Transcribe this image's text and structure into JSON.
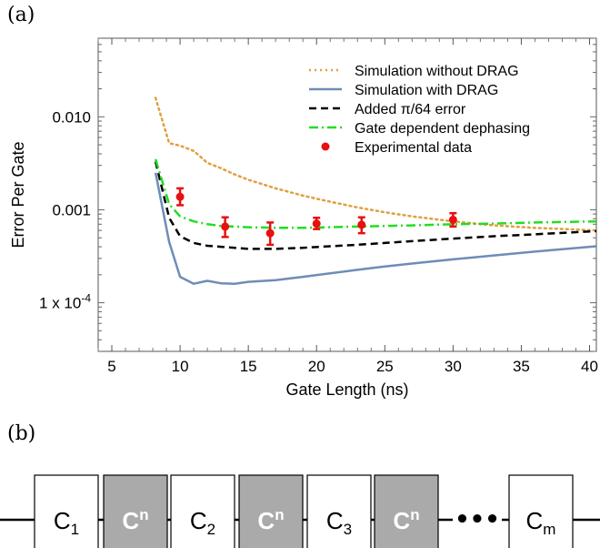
{
  "panel_labels": {
    "a": "(a)",
    "b": "(b)"
  },
  "chart_data": {
    "type": "line",
    "title": "",
    "xlabel": "Gate Length (ns)",
    "ylabel": "Error Per Gate",
    "xlim": [
      4,
      40.5
    ],
    "ylim": [
      3e-05,
      0.07
    ],
    "yscale": "log",
    "grid": false,
    "legend_position": "top-right",
    "x_ticks": [
      5,
      10,
      15,
      20,
      25,
      30,
      35,
      40
    ],
    "y_ticks": [
      {
        "value": 0.0001,
        "label": "1 x 10",
        "sup": "-4"
      },
      {
        "value": 0.001,
        "label": "0.001",
        "sup": ""
      },
      {
        "value": 0.01,
        "label": "0.010",
        "sup": ""
      }
    ],
    "series": [
      {
        "name": "Simulation without DRAG",
        "style": "dotted",
        "color": "#e0a040",
        "x": [
          8.2,
          9.2,
          10,
          11,
          12,
          13,
          14,
          15,
          17,
          19,
          21,
          23,
          25,
          27,
          30,
          33,
          36,
          40.5
        ],
        "y": [
          0.016,
          0.0052,
          0.0049,
          0.0043,
          0.0032,
          0.0028,
          0.0024,
          0.0021,
          0.0017,
          0.00142,
          0.00122,
          0.00106,
          0.00094,
          0.00085,
          0.00075,
          0.00068,
          0.00064,
          0.0006
        ]
      },
      {
        "name": "Simulation with DRAG",
        "style": "solid",
        "color": "#6e8db8",
        "x": [
          8.2,
          9.2,
          10,
          11,
          12,
          13,
          14,
          15,
          17,
          19,
          21,
          23,
          25,
          27,
          30,
          33,
          36,
          40.5
        ],
        "y": [
          0.0025,
          0.00045,
          0.00019,
          0.00016,
          0.000172,
          0.000162,
          0.00016,
          0.000168,
          0.000175,
          0.00019,
          0.000207,
          0.000226,
          0.000245,
          0.000264,
          0.000293,
          0.000323,
          0.000355,
          0.000405
        ]
      },
      {
        "name": "Added π/64 error",
        "style": "dashed",
        "color": "#000000",
        "x": [
          8.2,
          9.2,
          10,
          11,
          12,
          13,
          14,
          15,
          17,
          19,
          21,
          23,
          25,
          27,
          30,
          33,
          36,
          40.5
        ],
        "y": [
          0.0033,
          0.00082,
          0.00052,
          0.00044,
          0.00041,
          0.0004,
          0.00039,
          0.00038,
          0.00038,
          0.00039,
          0.000405,
          0.00042,
          0.00044,
          0.00046,
          0.00049,
          0.00052,
          0.000545,
          0.00059
        ]
      },
      {
        "name": "Gate dependent dephasing",
        "style": "dashdot",
        "color": "#22dd22",
        "x": [
          8.2,
          9.2,
          10,
          11,
          12,
          13,
          14,
          15,
          17,
          19,
          21,
          23,
          25,
          27,
          30,
          33,
          36,
          40.5
        ],
        "y": [
          0.0035,
          0.00115,
          0.00085,
          0.00075,
          0.0007,
          0.00067,
          0.00066,
          0.00065,
          0.00064,
          0.00064,
          0.00065,
          0.00066,
          0.00067,
          0.00068,
          0.0007,
          0.00071,
          0.00073,
          0.00075
        ]
      },
      {
        "name": "Experimental data",
        "style": "points",
        "color": "#e81010",
        "x": [
          10,
          13.3,
          16.6,
          20,
          23.3,
          30
        ],
        "y": [
          0.00138,
          0.00066,
          0.00056,
          0.00071,
          0.00069,
          0.00078
        ],
        "err_low": [
          0.00112,
          0.00051,
          0.00042,
          0.00062,
          0.00056,
          0.00066
        ],
        "err_high": [
          0.0017,
          0.00083,
          0.00073,
          0.00082,
          0.00083,
          0.00092
        ]
      }
    ]
  },
  "circuit": {
    "gates": [
      {
        "name": "C",
        "sub": "1",
        "sup": "",
        "shaded": false
      },
      {
        "name": "C",
        "sub": "",
        "sup": "n",
        "shaded": true
      },
      {
        "name": "C",
        "sub": "2",
        "sup": "",
        "shaded": false
      },
      {
        "name": "C",
        "sub": "",
        "sup": "n",
        "shaded": true
      },
      {
        "name": "C",
        "sub": "3",
        "sup": "",
        "shaded": false
      },
      {
        "name": "C",
        "sub": "",
        "sup": "n",
        "shaded": true
      },
      {
        "name": "C",
        "sub": "m",
        "sup": "",
        "shaded": false
      }
    ],
    "ellipsis": "•••",
    "colors": {
      "shaded_fill": "#aaaaaa",
      "shaded_text": "#ffffff",
      "plain_fill": "#ffffff",
      "line": "#000000"
    }
  }
}
